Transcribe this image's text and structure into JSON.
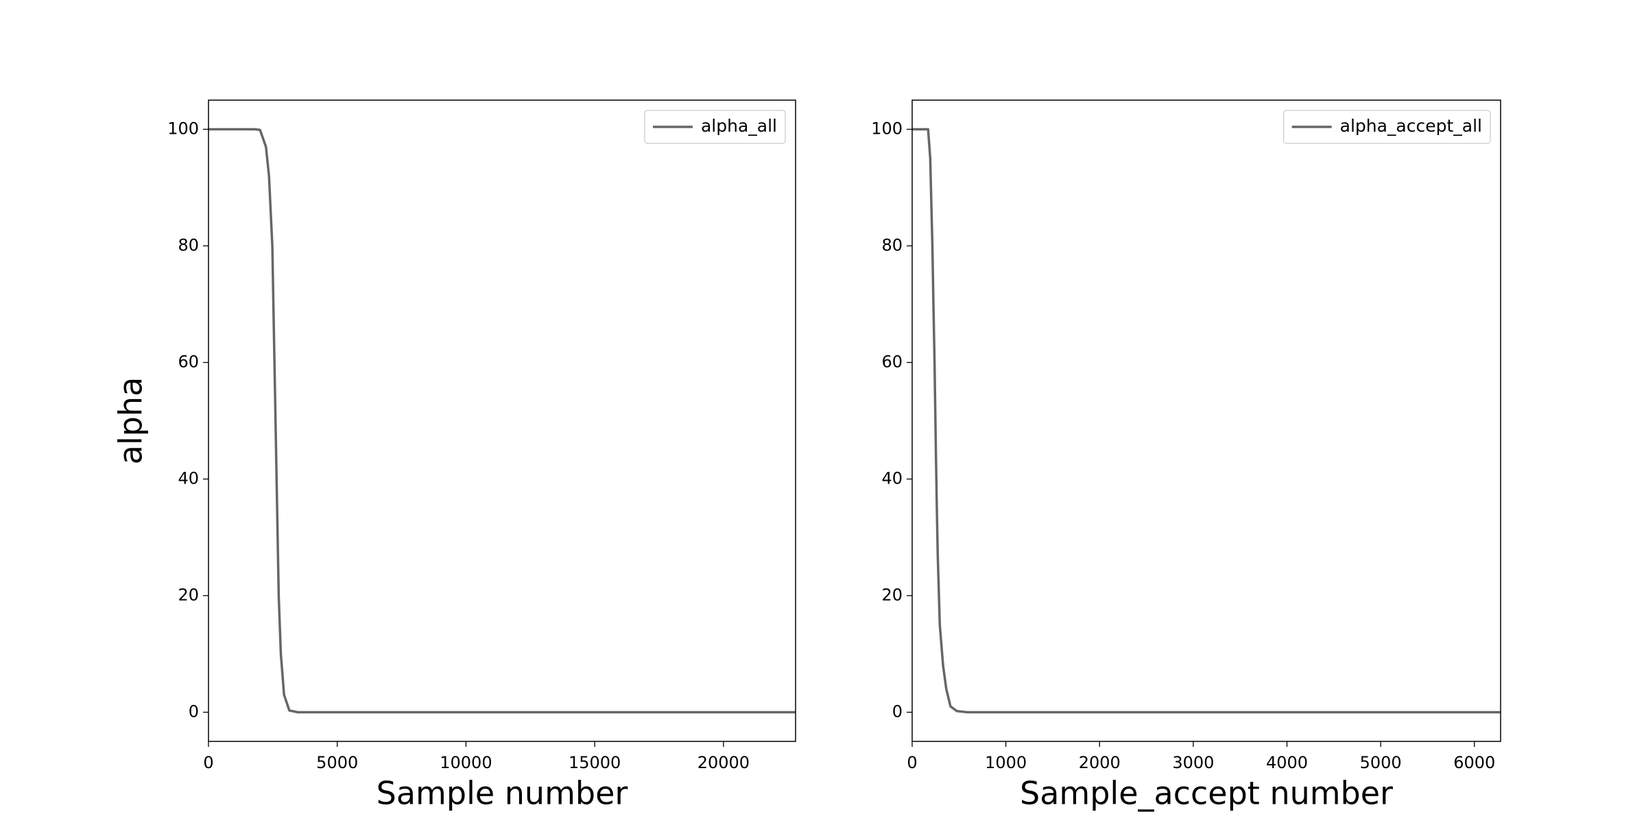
{
  "chart_data": [
    {
      "type": "line",
      "x_label": "Sample number",
      "y_label": "alpha",
      "legend": "upper right",
      "x": [
        0,
        1000,
        1800,
        2000,
        2231,
        2350,
        2479,
        2562,
        2645,
        2727,
        2810,
        2934,
        3140,
        3471,
        5000,
        10000,
        15000,
        20000,
        22800
      ],
      "series": [
        {
          "name": "alpha_all",
          "color": "#666666",
          "values": [
            100,
            100,
            100,
            99.9,
            97,
            92,
            80,
            60,
            40,
            20,
            10,
            3,
            0.3,
            0,
            0,
            0,
            0,
            0,
            0
          ]
        }
      ],
      "xlim": [
        0,
        22800
      ],
      "ylim": [
        -5,
        105
      ],
      "xticks": [
        0,
        5000,
        10000,
        15000,
        20000
      ],
      "yticks": [
        0,
        20,
        40,
        60,
        80,
        100
      ]
    },
    {
      "type": "line",
      "x_label": "Sample_accept number",
      "legend": "upper right",
      "x": [
        0,
        170,
        193,
        205,
        216,
        227,
        239,
        250,
        261,
        273,
        295,
        330,
        364,
        409,
        477,
        591,
        1000,
        3000,
        6280
      ],
      "series": [
        {
          "name": "alpha_accept_all",
          "color": "#666666",
          "values": [
            100,
            100,
            95,
            87,
            80,
            70,
            60,
            48,
            37,
            27,
            15,
            8,
            4,
            1,
            0.2,
            0,
            0,
            0,
            0
          ]
        }
      ],
      "xlim": [
        0,
        6280
      ],
      "ylim": [
        -5,
        105
      ],
      "xticks": [
        0,
        1000,
        2000,
        3000,
        4000,
        5000,
        6000
      ],
      "yticks": [
        0,
        20,
        40,
        60,
        80,
        100
      ]
    }
  ]
}
